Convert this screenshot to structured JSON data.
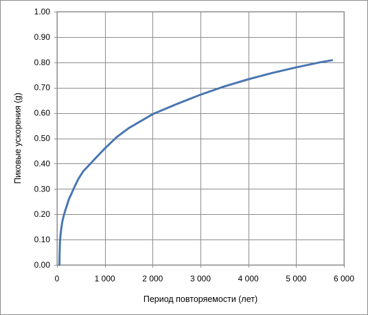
{
  "chart_data": {
    "type": "line",
    "title": "",
    "xlabel": "Период повторяемости (лет)",
    "ylabel": "Пиковые ускорения (g)",
    "xlim": [
      0,
      6000
    ],
    "ylim": [
      0,
      1.0
    ],
    "x_ticks": [
      0,
      1000,
      2000,
      3000,
      4000,
      5000,
      6000
    ],
    "x_tick_labels": [
      "0",
      "1 000",
      "2 000",
      "3 000",
      "4 000",
      "5 000",
      "6 000"
    ],
    "y_ticks": [
      0,
      0.1,
      0.2,
      0.3,
      0.4,
      0.5,
      0.6,
      0.7,
      0.8,
      0.9,
      1.0
    ],
    "y_tick_labels": [
      "0.00",
      "0.10",
      "0.20",
      "0.30",
      "0.40",
      "0.50",
      "0.60",
      "0.70",
      "0.80",
      "0.90",
      "1.00"
    ],
    "grid": true,
    "legend": "none",
    "series": [
      {
        "color": "#4a76b0",
        "x": [
          50,
          53,
          57,
          62,
          70,
          80,
          95,
          110,
          135,
          165,
          200,
          250,
          300,
          370,
          450,
          550,
          650,
          800,
          1000,
          1250,
          1500,
          2000,
          2500,
          3000,
          3500,
          4000,
          4500,
          5000,
          5500,
          5750
        ],
        "y": [
          0.0,
          0.03,
          0.06,
          0.09,
          0.11,
          0.13,
          0.15,
          0.17,
          0.19,
          0.21,
          0.23,
          0.26,
          0.28,
          0.31,
          0.34,
          0.37,
          0.39,
          0.42,
          0.46,
          0.505,
          0.54,
          0.595,
          0.635,
          0.672,
          0.705,
          0.733,
          0.758,
          0.78,
          0.8,
          0.808
        ]
      }
    ]
  }
}
